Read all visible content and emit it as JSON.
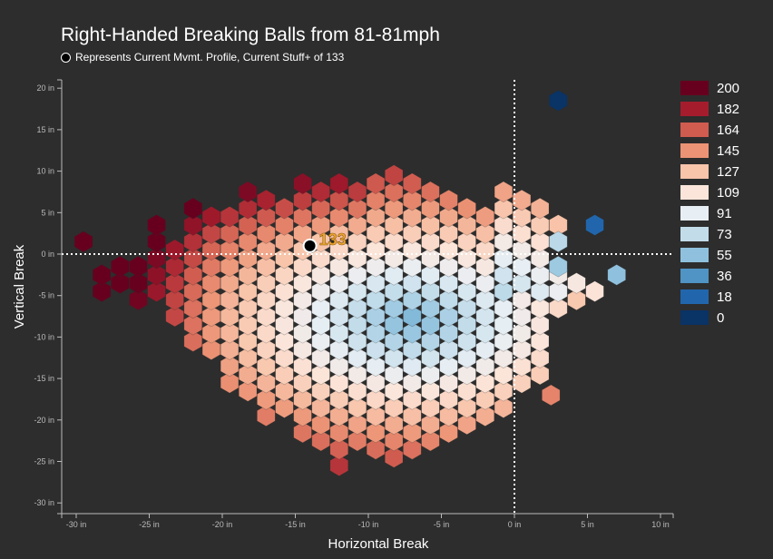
{
  "title": "Right-Handed Breaking Balls from 81-81mph",
  "subtitle": "Represents Current Mvmt. Profile, Current Stuff+ of 133",
  "chart_data": {
    "type": "heatmap",
    "subtype": "hexbin",
    "title": "Right-Handed Breaking Balls from 81-81mph",
    "subtitle": "Represents Current Mvmt. Profile, Current Stuff+ of 133",
    "xlabel": "Horizontal Break",
    "ylabel": "Vertical Break",
    "xlim": [
      -31,
      11
    ],
    "ylim": [
      -31,
      21
    ],
    "x_ticks": [
      -30,
      -25,
      -20,
      -15,
      -10,
      -5,
      0,
      5,
      10
    ],
    "y_ticks": [
      -30,
      -25,
      -20,
      -15,
      -10,
      -5,
      0,
      5,
      10,
      15,
      20
    ],
    "x_tick_labels": [
      "-30 in",
      "-25 in",
      "-20 in",
      "-15 in",
      "-10 in",
      "-5 in",
      "0 in",
      "5 in",
      "10 in"
    ],
    "y_tick_labels": [
      "-30 in",
      "-25 in",
      "-20 in",
      "-15 in",
      "-10 in",
      "-5 in",
      "0 in",
      "5 in",
      "10 in",
      "15 in",
      "20 in"
    ],
    "grid": false,
    "reference_lines": {
      "x": 0,
      "y": 0,
      "style": "dotted"
    },
    "legend": {
      "placement": "right",
      "entries": [
        {
          "label": "200",
          "color": "#67001f"
        },
        {
          "label": "182",
          "color": "#a51d2d"
        },
        {
          "label": "164",
          "color": "#d05b4f"
        },
        {
          "label": "145",
          "color": "#ec9375"
        },
        {
          "label": "127",
          "color": "#f8c4aa"
        },
        {
          "label": "109",
          "color": "#fbe5da"
        },
        {
          "label": "91",
          "color": "#e8eff4"
        },
        {
          "label": "73",
          "color": "#c2dcea"
        },
        {
          "label": "55",
          "color": "#8fc1de"
        },
        {
          "label": "36",
          "color": "#4f94c4"
        },
        {
          "label": "18",
          "color": "#2166ac"
        },
        {
          "label": "0",
          "color": "#0a3366"
        }
      ]
    },
    "current_point": {
      "x": -14.0,
      "y": 1.0,
      "label": "133"
    },
    "hex_columns": {
      "x_positions": [
        -29.5,
        -28.25,
        -27.0,
        -25.75,
        -24.5,
        -23.25,
        -22.0,
        -20.75,
        -19.5,
        -18.25,
        -17.0,
        -15.75,
        -14.5,
        -13.25,
        -12.0,
        -10.75,
        -9.5,
        -8.25,
        -7.0,
        -5.75,
        -4.5,
        -3.25,
        -2.0,
        -0.75,
        0.5,
        1.75,
        3.0,
        4.25,
        5.5
      ],
      "ranges": [
        [
          1.5,
          1.5
        ],
        [
          -4.5,
          -2.5
        ],
        [
          -3.5,
          -0.5
        ],
        [
          -5.5,
          -1.5
        ],
        [
          -4.5,
          4.5
        ],
        [
          -7.5,
          1.5
        ],
        [
          -10.5,
          6.5
        ],
        [
          -11.5,
          5.5
        ],
        [
          -15.5,
          4.5
        ],
        [
          -16.5,
          7.5
        ],
        [
          -19.5,
          6.5
        ],
        [
          -18.5,
          5.5
        ],
        [
          -21.5,
          9.5
        ],
        [
          -22.5,
          8.5
        ],
        [
          -25.5,
          9.5
        ],
        [
          -22.5,
          8.5
        ],
        [
          -23.5,
          9.5
        ],
        [
          -24.5,
          10.5
        ],
        [
          -23.5,
          9.5
        ],
        [
          -22.5,
          8.5
        ],
        [
          -21.5,
          7.5
        ],
        [
          -20.5,
          6.5
        ],
        [
          -19.5,
          5.5
        ],
        [
          -18.5,
          8.5
        ],
        [
          -15.5,
          7.5
        ],
        [
          -14.5,
          5.5
        ],
        [
          -6.5,
          3.5
        ],
        [
          -5.5,
          -2.5
        ],
        [
          -4.5,
          -4.5
        ]
      ],
      "gaps": [
        [
          [
            6.5,
            6.5
          ]
        ],
        [],
        [],
        [],
        [],
        [],
        [],
        [],
        [],
        [],
        [],
        [],
        [],
        [],
        [],
        [],
        [],
        [],
        [],
        [],
        [],
        [],
        [],
        [],
        [],
        [],
        [
          [
            -0.5,
            1.5
          ]
        ],
        [
          [
            -1.5,
            -0.5
          ]
        ],
        []
      ]
    },
    "outlier_hexes": [
      {
        "x": 5.5,
        "y": 3.5,
        "value": 18
      },
      {
        "x": 3.0,
        "y": 18.5,
        "value": 0
      },
      {
        "x": 2.5,
        "y": -17.0,
        "value": 150
      },
      {
        "x": 7.0,
        "y": -2.5,
        "value": 55
      },
      {
        "x": 3.0,
        "y": -1.5,
        "value": 60
      },
      {
        "x": 3.0,
        "y": 1.5,
        "value": 70
      }
    ],
    "value_model": {
      "description": "Stuff+ value per hex, highest at far left/bottom edges, lowest near center-right",
      "hot_center": [
        -28,
        -3
      ],
      "cold_center": [
        -7,
        -8
      ]
    }
  },
  "labels": {
    "x_axis_title": "Horizontal Break",
    "y_axis_title": "Vertical Break",
    "point_annotation": "133"
  }
}
